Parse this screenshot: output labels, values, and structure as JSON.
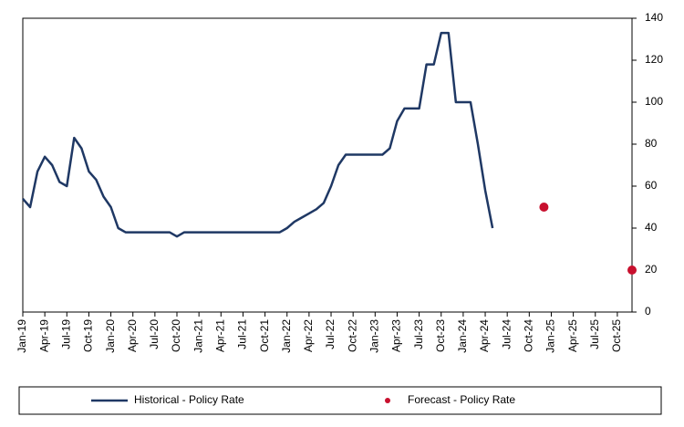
{
  "chart_data": {
    "type": "line",
    "categories": [
      "Jan-19",
      null,
      null,
      "Apr-19",
      null,
      null,
      "Jul-19",
      null,
      null,
      "Oct-19",
      null,
      null,
      "Jan-20",
      null,
      null,
      "Apr-20",
      null,
      null,
      "Jul-20",
      null,
      null,
      "Oct-20",
      null,
      null,
      "Jan-21",
      null,
      null,
      "Apr-21",
      null,
      null,
      "Jul-21",
      null,
      null,
      "Oct-21",
      null,
      null,
      "Jan-22",
      null,
      null,
      "Apr-22",
      null,
      null,
      "Jul-22",
      null,
      null,
      "Oct-22",
      null,
      null,
      "Jan-23",
      null,
      null,
      "Apr-23",
      null,
      null,
      "Jul-23",
      null,
      null,
      "Oct-23",
      null,
      null,
      "Jan-24",
      null,
      null,
      "Apr-24",
      null,
      null,
      "Jul-24",
      null,
      null,
      "Oct-24",
      null,
      null,
      "Jan-25",
      null,
      null,
      "Apr-25",
      null,
      null,
      "Jul-25",
      null,
      null,
      "Oct-25",
      null,
      null
    ],
    "series": [
      {
        "name": "Historical - Policy Rate",
        "color": "#1f3864",
        "mode": "line",
        "values": [
          54,
          50,
          67,
          74,
          70,
          62,
          60,
          83,
          78,
          67,
          63,
          55,
          50,
          40,
          38,
          38,
          38,
          38,
          38,
          38,
          38,
          36,
          38,
          38,
          38,
          38,
          38,
          38,
          38,
          38,
          38,
          38,
          38,
          38,
          38,
          38,
          40,
          43,
          45,
          47,
          49,
          52,
          60,
          70,
          75,
          75,
          75,
          75,
          75,
          75,
          78,
          91,
          97,
          97,
          97,
          118,
          118,
          133,
          133,
          100,
          100,
          100,
          80,
          58,
          40,
          null,
          null,
          null,
          null,
          null,
          null,
          null,
          null,
          null,
          null,
          null,
          null,
          null,
          null,
          null,
          null,
          null,
          null,
          null
        ]
      },
      {
        "name": "Forecast - Policy Rate",
        "color": "#c8102e",
        "mode": "marker",
        "values": [
          null,
          null,
          null,
          null,
          null,
          null,
          null,
          null,
          null,
          null,
          null,
          null,
          null,
          null,
          null,
          null,
          null,
          null,
          null,
          null,
          null,
          null,
          null,
          null,
          null,
          null,
          null,
          null,
          null,
          null,
          null,
          null,
          null,
          null,
          null,
          null,
          null,
          null,
          null,
          null,
          null,
          null,
          null,
          null,
          null,
          null,
          null,
          null,
          null,
          null,
          null,
          null,
          null,
          null,
          null,
          null,
          null,
          null,
          null,
          null,
          null,
          null,
          null,
          null,
          null,
          null,
          null,
          null,
          null,
          null,
          null,
          50,
          null,
          null,
          null,
          null,
          null,
          null,
          null,
          null,
          null,
          null,
          null,
          20
        ]
      }
    ],
    "ylim": [
      0,
      140
    ],
    "yticks": [
      0,
      20,
      40,
      60,
      80,
      100,
      120,
      140
    ],
    "y_axis_side": "right"
  }
}
